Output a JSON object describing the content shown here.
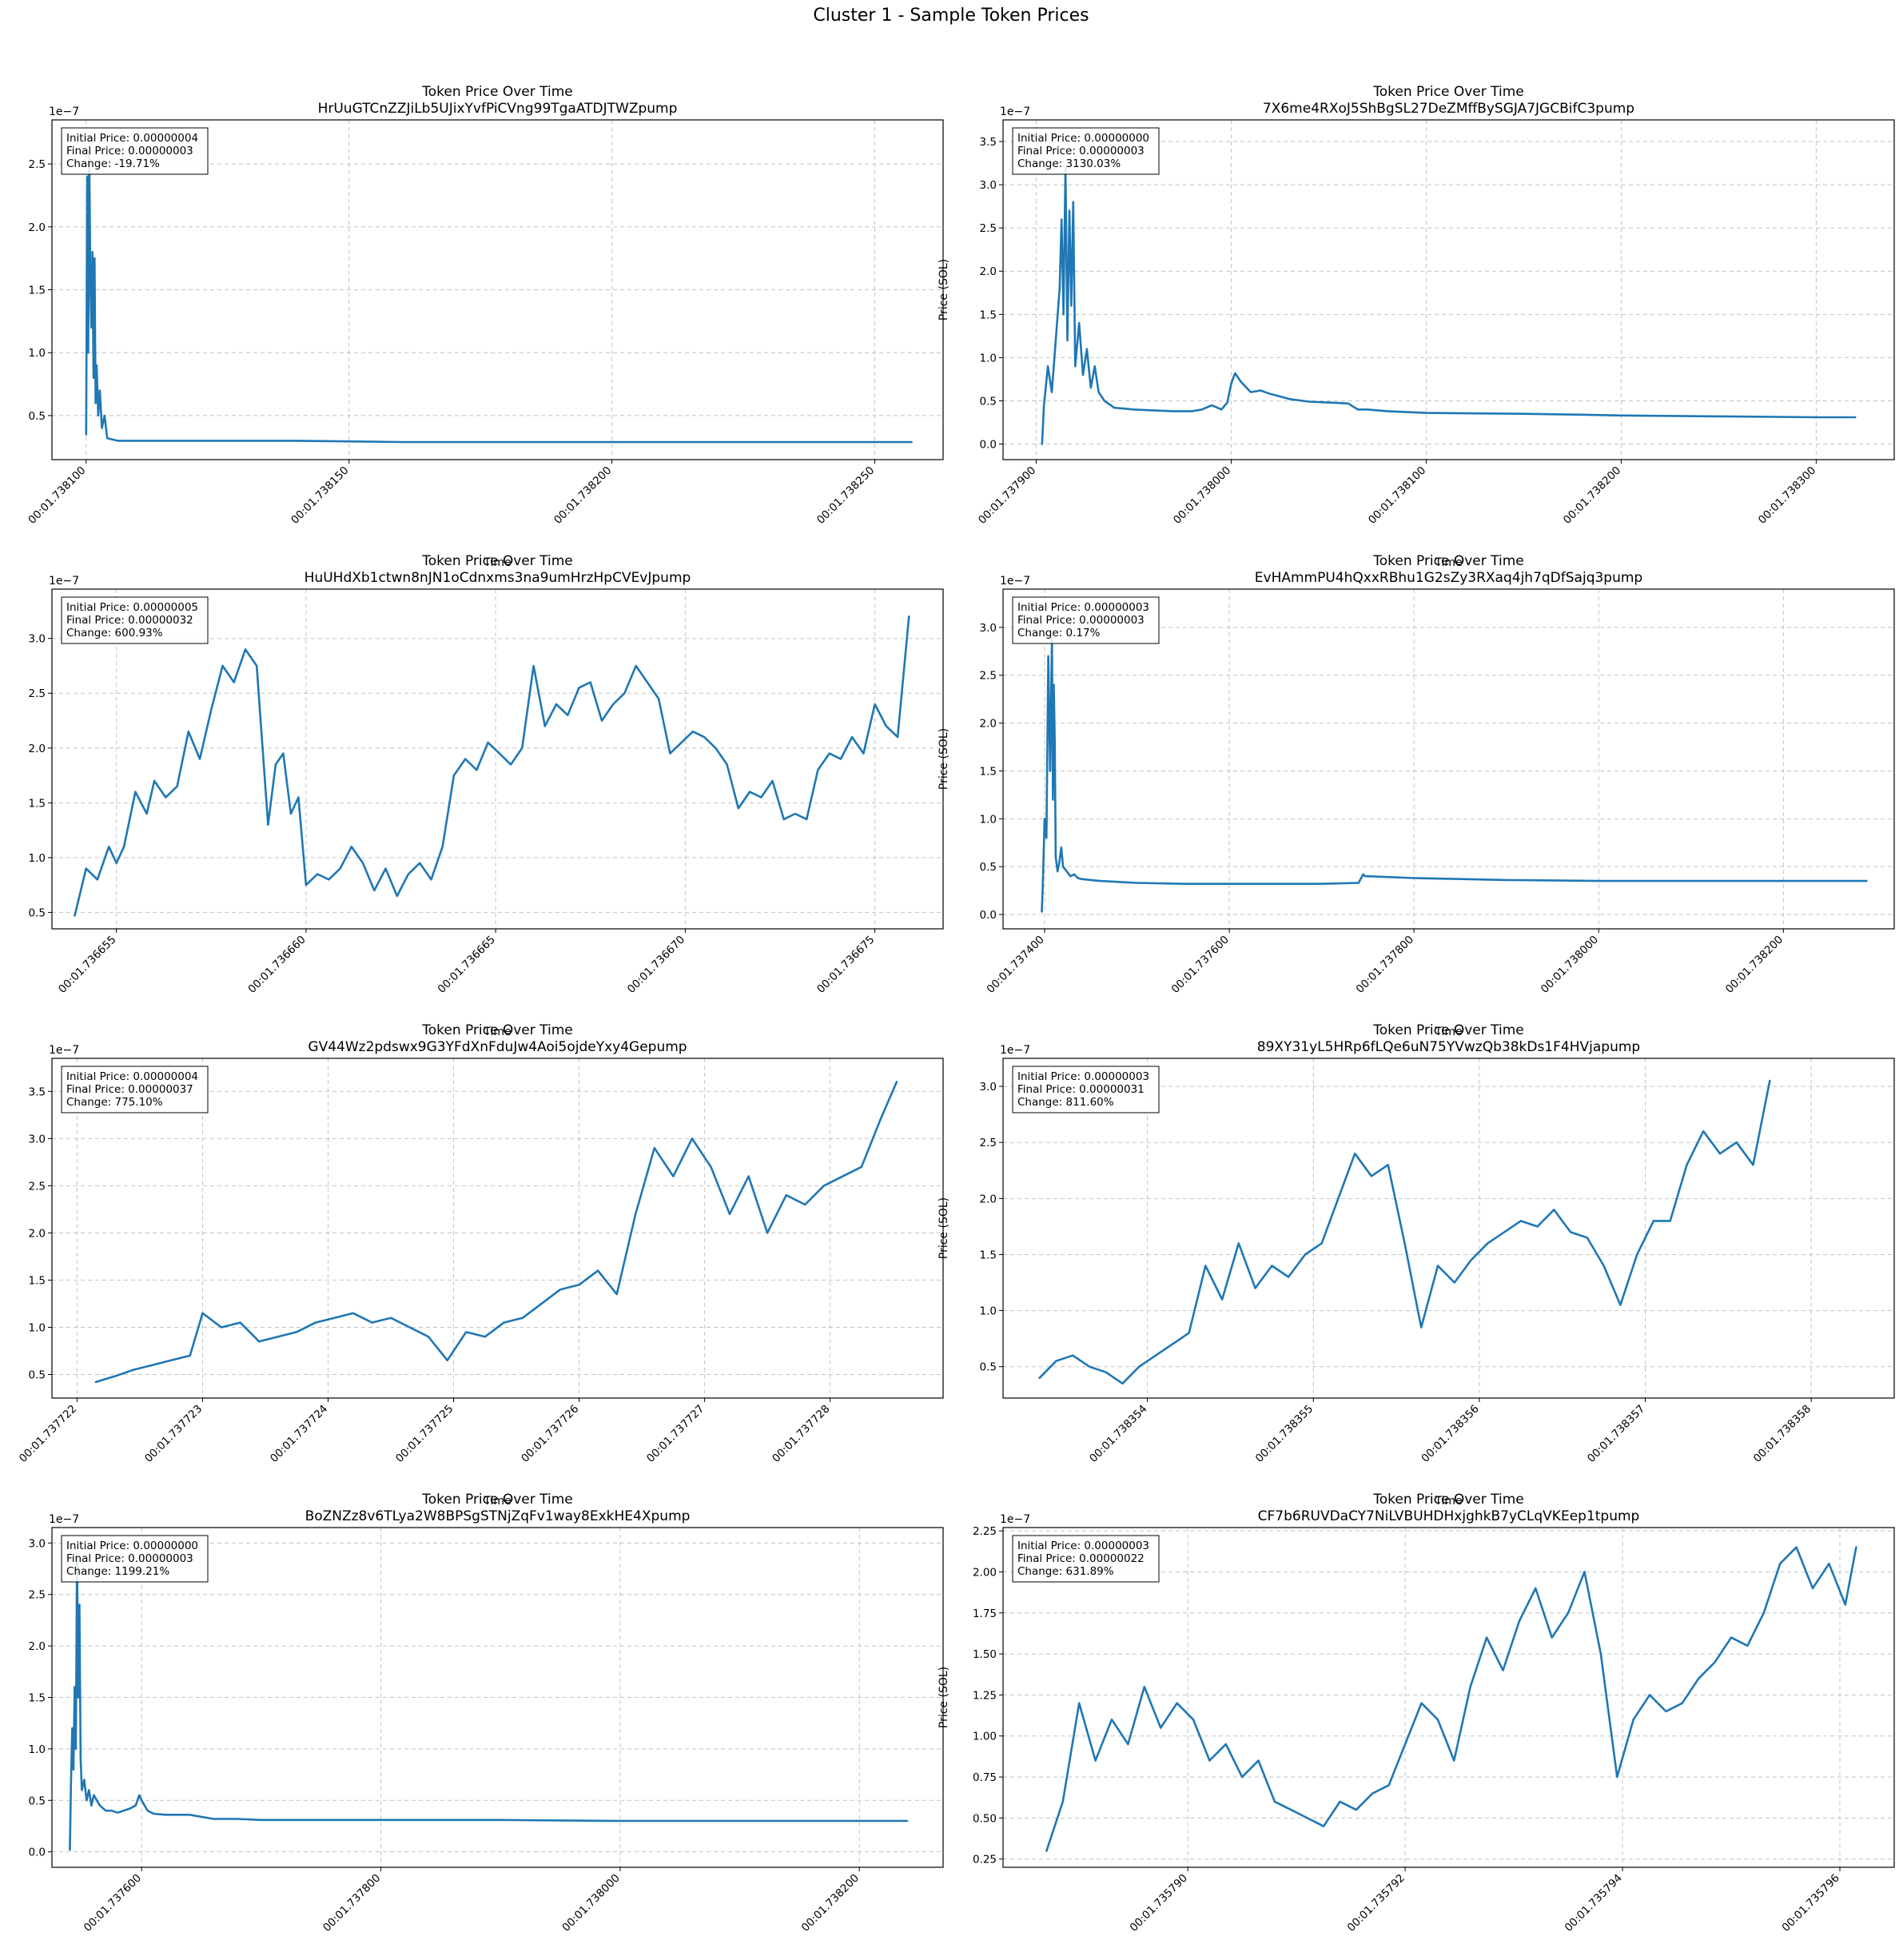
{
  "figure": {
    "title": "Cluster 1 - Sample Token Prices"
  },
  "chart_data": [
    {
      "type": "line",
      "title": "Token Price Over Time",
      "token": "HrUuGTCnZZJiLb5UJixYvfPiCVng99TgaATDJTWZpump",
      "xlabel": "Time",
      "ylabel": "Price (SOL)",
      "y_offset_label": "1e−7",
      "x_ticks": [
        "00:01.738100",
        "00:01.738150",
        "00:01.738200",
        "00:01.738250"
      ],
      "x_tick_values": [
        100,
        150,
        200,
        250
      ],
      "xlim": [
        93.5,
        263
      ],
      "y_ticks": [
        "0.5",
        "1.0",
        "1.5",
        "2.0",
        "2.5"
      ],
      "y_tick_values": [
        0.5,
        1.0,
        1.5,
        2.0,
        2.5
      ],
      "ylim": [
        0.15,
        2.85
      ],
      "annotation": [
        "Initial Price: 0.00000004",
        "Final Price: 0.00000003",
        "Change: -19.71%"
      ],
      "grid": true,
      "x": [
        100.0,
        100.2,
        100.4,
        100.6,
        100.8,
        101.0,
        101.2,
        101.4,
        101.6,
        101.8,
        102.0,
        102.3,
        102.6,
        103.0,
        103.5,
        104.0,
        105.0,
        106.0,
        107.0,
        108.0,
        110.0,
        112.0,
        115.0,
        120.0,
        130.0,
        140.0,
        150.0,
        160.0,
        170.0,
        180.0,
        190.0,
        200.0,
        210.0,
        220.0,
        230.0,
        240.0,
        250.0,
        257.0
      ],
      "y": [
        0.35,
        2.4,
        1.0,
        2.6,
        1.6,
        1.2,
        1.8,
        0.8,
        1.75,
        0.6,
        0.9,
        0.5,
        0.7,
        0.4,
        0.5,
        0.32,
        0.31,
        0.3,
        0.3,
        0.3,
        0.3,
        0.3,
        0.3,
        0.3,
        0.3,
        0.3,
        0.295,
        0.29,
        0.29,
        0.29,
        0.29,
        0.29,
        0.29,
        0.29,
        0.29,
        0.29,
        0.29,
        0.29
      ]
    },
    {
      "type": "line",
      "title": "Token Price Over Time",
      "token": "7X6me4RXoJ5ShBgSL27DeZMffBySGJA7JGCBifC3pump",
      "xlabel": "Time",
      "ylabel": "Price (SOL)",
      "y_offset_label": "1e−7",
      "x_ticks": [
        "00:01.737900",
        "00:01.738000",
        "00:01.738100",
        "00:01.738200",
        "00:01.738300"
      ],
      "x_tick_values": [
        900,
        1000,
        1100,
        1200,
        1300
      ],
      "xlim": [
        883,
        1340
      ],
      "y_ticks": [
        "0.0",
        "0.5",
        "1.0",
        "1.5",
        "2.0",
        "2.5",
        "3.0",
        "3.5"
      ],
      "y_tick_values": [
        0.0,
        0.5,
        1.0,
        1.5,
        2.0,
        2.5,
        3.0,
        3.5
      ],
      "ylim": [
        -0.18,
        3.75
      ],
      "annotation": [
        "Initial Price: 0.00000000",
        "Final Price: 0.00000003",
        "Change: 3130.03%"
      ],
      "grid": true,
      "x": [
        903,
        904,
        906,
        908,
        910,
        912,
        913,
        914,
        915,
        916,
        917,
        918,
        919,
        920,
        922,
        924,
        926,
        928,
        930,
        932,
        935,
        940,
        950,
        960,
        970,
        980,
        985,
        990,
        995,
        998,
        1000,
        1002,
        1005,
        1010,
        1015,
        1020,
        1030,
        1040,
        1050,
        1060,
        1065,
        1070,
        1080,
        1100,
        1150,
        1180,
        1200,
        1250,
        1300,
        1320
      ],
      "y": [
        0.0,
        0.45,
        0.9,
        0.6,
        1.2,
        1.8,
        2.6,
        1.5,
        3.2,
        1.2,
        2.7,
        1.6,
        2.8,
        0.9,
        1.4,
        0.8,
        1.1,
        0.65,
        0.9,
        0.6,
        0.5,
        0.42,
        0.4,
        0.39,
        0.38,
        0.38,
        0.4,
        0.45,
        0.4,
        0.48,
        0.7,
        0.82,
        0.72,
        0.6,
        0.62,
        0.58,
        0.52,
        0.49,
        0.48,
        0.47,
        0.4,
        0.4,
        0.38,
        0.36,
        0.35,
        0.34,
        0.33,
        0.32,
        0.31,
        0.31
      ]
    },
    {
      "type": "line",
      "title": "Token Price Over Time",
      "token": "HuUHdXb1ctwn8nJN1oCdnxms3na9umHrzHpCVEvJpump",
      "xlabel": "Time",
      "ylabel": "Price (SOL)",
      "y_offset_label": "1e−7",
      "x_ticks": [
        "00:01.736655",
        "00:01.736660",
        "00:01.736665",
        "00:01.736670",
        "00:01.736675"
      ],
      "x_tick_values": [
        655,
        660,
        665,
        670,
        675
      ],
      "xlim": [
        653.3,
        676.8
      ],
      "y_ticks": [
        "0.5",
        "1.0",
        "1.5",
        "2.0",
        "2.5",
        "3.0"
      ],
      "y_tick_values": [
        0.5,
        1.0,
        1.5,
        2.0,
        2.5,
        3.0
      ],
      "ylim": [
        0.35,
        3.45
      ],
      "annotation": [
        "Initial Price: 0.00000005",
        "Final Price: 0.00000032",
        "Change: 600.93%"
      ],
      "grid": true,
      "x": [
        653.9,
        654.2,
        654.5,
        654.8,
        655.0,
        655.2,
        655.5,
        655.8,
        656.0,
        656.3,
        656.6,
        656.9,
        657.2,
        657.5,
        657.8,
        658.1,
        658.4,
        658.7,
        659.0,
        659.2,
        659.4,
        659.6,
        659.8,
        660.0,
        660.3,
        660.6,
        660.9,
        661.2,
        661.5,
        661.8,
        662.1,
        662.4,
        662.7,
        663.0,
        663.3,
        663.6,
        663.9,
        664.2,
        664.5,
        664.8,
        665.1,
        665.4,
        665.7,
        666.0,
        666.3,
        666.6,
        666.9,
        667.2,
        667.5,
        667.8,
        668.1,
        668.4,
        668.7,
        669.0,
        669.3,
        669.6,
        669.9,
        670.2,
        670.5,
        670.8,
        671.1,
        671.4,
        671.7,
        672.0,
        672.3,
        672.6,
        672.9,
        673.2,
        673.5,
        673.8,
        674.1,
        674.4,
        674.7,
        675.0,
        675.3,
        675.6,
        675.9
      ],
      "y": [
        0.47,
        0.9,
        0.8,
        1.1,
        0.95,
        1.1,
        1.6,
        1.4,
        1.7,
        1.55,
        1.65,
        2.15,
        1.9,
        2.35,
        2.75,
        2.6,
        2.9,
        2.75,
        1.3,
        1.85,
        1.95,
        1.4,
        1.55,
        0.75,
        0.85,
        0.8,
        0.9,
        1.1,
        0.95,
        0.7,
        0.9,
        0.65,
        0.85,
        0.95,
        0.8,
        1.1,
        1.75,
        1.9,
        1.8,
        2.05,
        1.95,
        1.85,
        2.0,
        2.75,
        2.2,
        2.4,
        2.3,
        2.55,
        2.6,
        2.25,
        2.4,
        2.5,
        2.75,
        2.6,
        2.45,
        1.95,
        2.05,
        2.15,
        2.1,
        2.0,
        1.85,
        1.45,
        1.6,
        1.55,
        1.7,
        1.35,
        1.4,
        1.35,
        1.8,
        1.95,
        1.9,
        2.1,
        1.95,
        2.4,
        2.2,
        2.1,
        3.2
      ]
    },
    {
      "type": "line",
      "title": "Token Price Over Time",
      "token": "EvHAmmPU4hQxxRBhu1G2sZy3RXaq4jh7qDfSajq3pump",
      "xlabel": "Time",
      "ylabel": "Price (SOL)",
      "y_offset_label": "1e−7",
      "x_ticks": [
        "00:01.737400",
        "00:01.737600",
        "00:01.737800",
        "00:01.738000",
        "00:01.738200"
      ],
      "x_tick_values": [
        400,
        600,
        800,
        1000,
        1200
      ],
      "xlim": [
        355,
        1320
      ],
      "y_ticks": [
        "0.0",
        "0.5",
        "1.0",
        "1.5",
        "2.0",
        "2.5",
        "3.0"
      ],
      "y_tick_values": [
        0.0,
        0.5,
        1.0,
        1.5,
        2.0,
        2.5,
        3.0
      ],
      "ylim": [
        -0.15,
        3.4
      ],
      "annotation": [
        "Initial Price: 0.00000003",
        "Final Price: 0.00000003",
        "Change: 0.17%"
      ],
      "grid": true,
      "x": [
        397,
        398,
        400,
        402,
        404,
        406,
        408,
        409,
        410,
        411,
        412,
        414,
        416,
        418,
        420,
        424,
        428,
        432,
        436,
        440,
        450,
        460,
        480,
        500,
        550,
        600,
        650,
        700,
        740,
        745,
        747,
        750,
        800,
        850,
        900,
        1000,
        1100,
        1200,
        1250,
        1290
      ],
      "y": [
        0.03,
        0.3,
        1.0,
        0.8,
        2.7,
        1.5,
        2.9,
        1.2,
        2.4,
        1.8,
        0.6,
        0.45,
        0.55,
        0.7,
        0.5,
        0.45,
        0.4,
        0.42,
        0.38,
        0.37,
        0.36,
        0.35,
        0.34,
        0.33,
        0.32,
        0.32,
        0.32,
        0.32,
        0.33,
        0.42,
        0.4,
        0.4,
        0.38,
        0.37,
        0.36,
        0.35,
        0.35,
        0.35,
        0.35,
        0.35
      ]
    },
    {
      "type": "line",
      "title": "Token Price Over Time",
      "token": "GV44Wz2pdswx9G3YFdXnFduJw4Aoi5ojdeYxy4Gepump",
      "xlabel": "Time",
      "ylabel": "Price (SOL)",
      "y_offset_label": "1e−7",
      "x_ticks": [
        "00:01.737722",
        "00:01.737723",
        "00:01.737724",
        "00:01.737725",
        "00:01.737726",
        "00:01.737727",
        "00:01.737728"
      ],
      "x_tick_values": [
        722,
        723,
        724,
        725,
        726,
        727,
        728
      ],
      "xlim": [
        721.8,
        728.9
      ],
      "y_ticks": [
        "0.5",
        "1.0",
        "1.5",
        "2.0",
        "2.5",
        "3.0",
        "3.5"
      ],
      "y_tick_values": [
        0.5,
        1.0,
        1.5,
        2.0,
        2.5,
        3.0,
        3.5
      ],
      "ylim": [
        0.25,
        3.85
      ],
      "annotation": [
        "Initial Price: 0.00000004",
        "Final Price: 0.00000037",
        "Change: 775.10%"
      ],
      "grid": true,
      "x": [
        722.15,
        722.3,
        722.45,
        722.6,
        722.75,
        722.9,
        723.0,
        723.15,
        723.3,
        723.45,
        723.6,
        723.75,
        723.9,
        724.05,
        724.2,
        724.35,
        724.5,
        724.65,
        724.8,
        724.95,
        725.1,
        725.25,
        725.4,
        725.55,
        725.7,
        725.85,
        726.0,
        726.15,
        726.3,
        726.45,
        726.6,
        726.75,
        726.9,
        727.05,
        727.2,
        727.35,
        727.5,
        727.65,
        727.8,
        727.95,
        728.1,
        728.25,
        728.4,
        728.53
      ],
      "y": [
        0.42,
        0.48,
        0.55,
        0.6,
        0.65,
        0.7,
        1.15,
        1.0,
        1.05,
        0.85,
        0.9,
        0.95,
        1.05,
        1.1,
        1.15,
        1.05,
        1.1,
        1.0,
        0.9,
        0.65,
        0.95,
        0.9,
        1.05,
        1.1,
        1.25,
        1.4,
        1.45,
        1.6,
        1.35,
        2.2,
        2.9,
        2.6,
        3.0,
        2.7,
        2.2,
        2.6,
        2.0,
        2.4,
        2.3,
        2.5,
        2.6,
        2.7,
        3.2,
        3.6
      ]
    },
    {
      "type": "line",
      "title": "Token Price Over Time",
      "token": "89XY31yL5HRp6fLQe6uN75YVwzQb38kDs1F4HVjapump",
      "xlabel": "Time",
      "ylabel": "Price (SOL)",
      "y_offset_label": "1e−7",
      "x_ticks": [
        "00:01.738354",
        "00:01.738355",
        "00:01.738356",
        "00:01.738357",
        "00:01.738358"
      ],
      "x_tick_values": [
        354,
        355,
        356,
        357,
        358
      ],
      "xlim": [
        353.13,
        358.5
      ],
      "y_ticks": [
        "0.5",
        "1.0",
        "1.5",
        "2.0",
        "2.5",
        "3.0"
      ],
      "y_tick_values": [
        0.5,
        1.0,
        1.5,
        2.0,
        2.5,
        3.0
      ],
      "ylim": [
        0.22,
        3.25
      ],
      "annotation": [
        "Initial Price: 0.00000003",
        "Final Price: 0.00000031",
        "Change: 811.60%"
      ],
      "grid": true,
      "x": [
        353.35,
        353.45,
        353.55,
        353.65,
        353.75,
        353.85,
        353.95,
        354.05,
        354.15,
        354.25,
        354.35,
        354.45,
        354.55,
        354.65,
        354.75,
        354.85,
        354.95,
        355.05,
        355.15,
        355.25,
        355.35,
        355.45,
        355.55,
        355.65,
        355.75,
        355.85,
        355.95,
        356.05,
        356.15,
        356.25,
        356.35,
        356.45,
        356.55,
        356.65,
        356.75,
        356.85,
        356.95,
        357.05,
        357.15,
        357.25,
        357.35,
        357.45,
        357.55,
        357.65,
        357.75
      ],
      "y": [
        0.4,
        0.55,
        0.6,
        0.5,
        0.45,
        0.35,
        0.5,
        0.6,
        0.7,
        0.8,
        1.4,
        1.1,
        1.6,
        1.2,
        1.4,
        1.3,
        1.5,
        1.6,
        2.0,
        2.4,
        2.2,
        2.3,
        1.6,
        0.85,
        1.4,
        1.25,
        1.45,
        1.6,
        1.7,
        1.8,
        1.75,
        1.9,
        1.7,
        1.65,
        1.4,
        1.05,
        1.5,
        1.8,
        1.8,
        2.3,
        2.6,
        2.4,
        2.5,
        2.3,
        3.05
      ]
    },
    {
      "type": "line",
      "title": "Token Price Over Time",
      "token": "BoZNZz8v6TLya2W8BPSgSTNjZqFv1way8ExkHE4Xpump",
      "xlabel": "Time",
      "ylabel": "Price (SOL)",
      "y_offset_label": "1e−7",
      "x_ticks": [
        "00:01.737600",
        "00:01.737800",
        "00:01.738000",
        "00:01.738200"
      ],
      "x_tick_values": [
        600,
        800,
        1000,
        1200
      ],
      "xlim": [
        525,
        1270
      ],
      "y_ticks": [
        "0.0",
        "0.5",
        "1.0",
        "1.5",
        "2.0",
        "2.5",
        "3.0"
      ],
      "y_tick_values": [
        0.0,
        0.5,
        1.0,
        1.5,
        2.0,
        2.5,
        3.0
      ],
      "ylim": [
        -0.15,
        3.15
      ],
      "annotation": [
        "Initial Price: 0.00000000",
        "Final Price: 0.00000003",
        "Change: 1199.21%"
      ],
      "grid": true,
      "x": [
        540,
        541,
        542,
        543,
        544,
        545,
        546,
        547,
        548,
        549,
        550,
        552,
        554,
        556,
        558,
        560,
        565,
        570,
        575,
        580,
        590,
        595,
        598,
        600,
        605,
        610,
        620,
        640,
        660,
        680,
        700,
        750,
        800,
        850,
        900,
        950,
        1000,
        1050,
        1100,
        1150,
        1200,
        1240
      ],
      "y": [
        0.02,
        0.7,
        1.2,
        0.8,
        1.6,
        1.0,
        2.9,
        1.5,
        2.4,
        0.9,
        0.6,
        0.7,
        0.5,
        0.6,
        0.45,
        0.55,
        0.45,
        0.4,
        0.4,
        0.38,
        0.42,
        0.45,
        0.55,
        0.5,
        0.4,
        0.37,
        0.36,
        0.36,
        0.32,
        0.32,
        0.31,
        0.31,
        0.31,
        0.31,
        0.31,
        0.305,
        0.3,
        0.3,
        0.3,
        0.3,
        0.3,
        0.3
      ]
    },
    {
      "type": "line",
      "title": "Token Price Over Time",
      "token": "CF7b6RUVDaCY7NiLVBUHDHxjghkB7yCLqVKEep1tpump",
      "xlabel": "Time",
      "ylabel": "Price (SOL)",
      "y_offset_label": "1e−7",
      "x_ticks": [
        "00:01.735790",
        "00:01.735792",
        "00:01.735794",
        "00:01.735796"
      ],
      "x_tick_values": [
        790,
        792,
        794,
        796
      ],
      "xlim": [
        788.3,
        796.5
      ],
      "y_ticks": [
        "0.25",
        "0.50",
        "0.75",
        "1.00",
        "1.25",
        "1.50",
        "1.75",
        "2.00",
        "2.25"
      ],
      "y_tick_values": [
        0.25,
        0.5,
        0.75,
        1.0,
        1.25,
        1.5,
        1.75,
        2.0,
        2.25
      ],
      "ylim": [
        0.2,
        2.27
      ],
      "annotation": [
        "Initial Price: 0.00000003",
        "Final Price: 0.00000022",
        "Change: 631.89%"
      ],
      "grid": true,
      "x": [
        788.7,
        788.85,
        789.0,
        789.15,
        789.3,
        789.45,
        789.6,
        789.75,
        789.9,
        790.05,
        790.2,
        790.35,
        790.5,
        790.65,
        790.8,
        790.95,
        791.1,
        791.25,
        791.4,
        791.55,
        791.7,
        791.85,
        792.0,
        792.15,
        792.3,
        792.45,
        792.6,
        792.75,
        792.9,
        793.05,
        793.2,
        793.35,
        793.5,
        793.65,
        793.8,
        793.95,
        794.1,
        794.25,
        794.4,
        794.55,
        794.7,
        794.85,
        795.0,
        795.15,
        795.3,
        795.45,
        795.6,
        795.75,
        795.9,
        796.05,
        796.15
      ],
      "y": [
        0.3,
        0.6,
        1.2,
        0.85,
        1.1,
        0.95,
        1.3,
        1.05,
        1.2,
        1.1,
        0.85,
        0.95,
        0.75,
        0.85,
        0.6,
        0.55,
        0.5,
        0.45,
        0.6,
        0.55,
        0.65,
        0.7,
        0.95,
        1.2,
        1.1,
        0.85,
        1.3,
        1.6,
        1.4,
        1.7,
        1.9,
        1.6,
        1.75,
        2.0,
        1.5,
        0.75,
        1.1,
        1.25,
        1.15,
        1.2,
        1.35,
        1.45,
        1.6,
        1.55,
        1.75,
        2.05,
        2.15,
        1.9,
        2.05,
        1.8,
        2.15
      ]
    }
  ]
}
